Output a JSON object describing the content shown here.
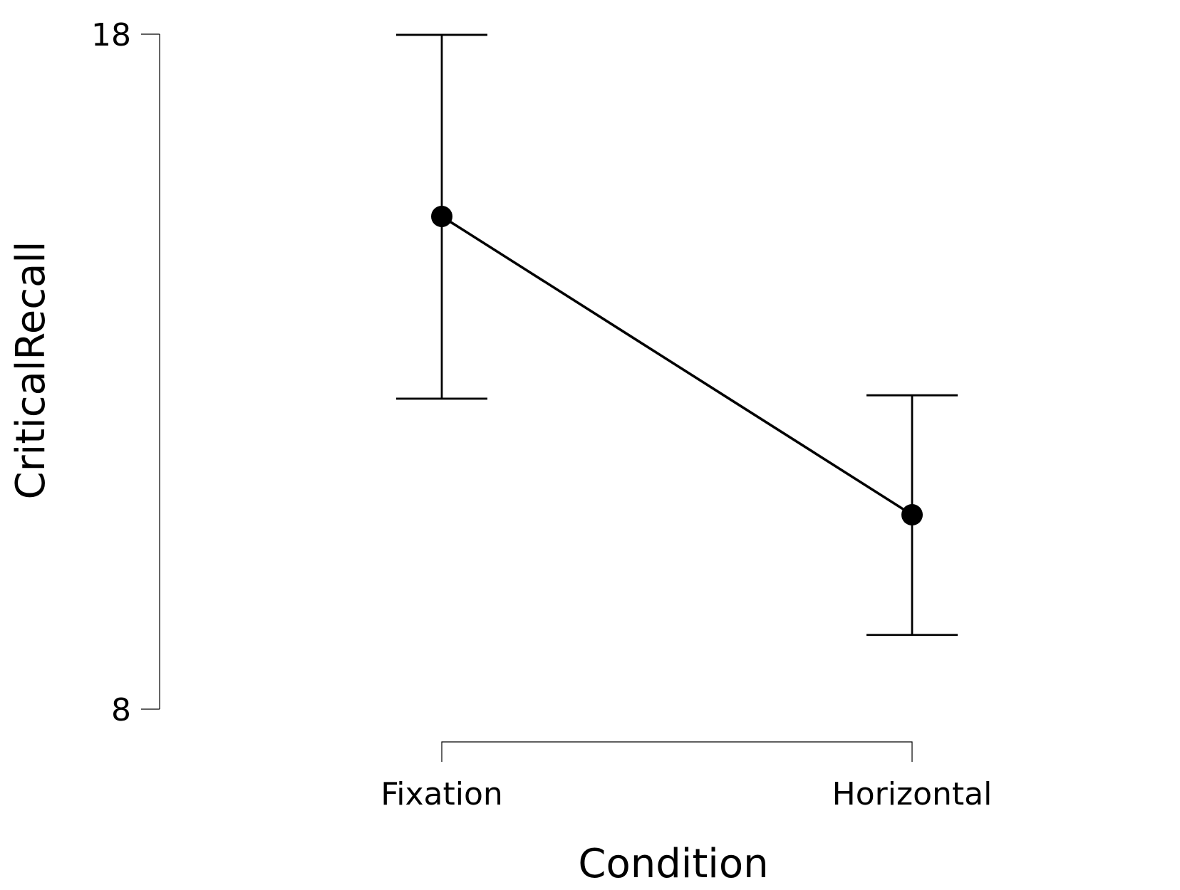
{
  "chart_data": {
    "type": "line",
    "title": "",
    "xlabel": "Condition",
    "ylabel": "CriticalRecall",
    "categories": [
      "Fixation",
      "Horizontal"
    ],
    "series": [
      {
        "values": [
          15.3,
          10.88
        ],
        "ci_lower": [
          12.6,
          9.1
        ],
        "ci_upper": [
          17.99,
          12.65
        ]
      }
    ],
    "ylim": [
      8,
      18
    ],
    "y_ticks": [
      "8",
      "18"
    ],
    "grid": false,
    "legend": "none",
    "colors": {
      "line": "#000000",
      "point": "#000000",
      "background": "#ffffff"
    }
  }
}
